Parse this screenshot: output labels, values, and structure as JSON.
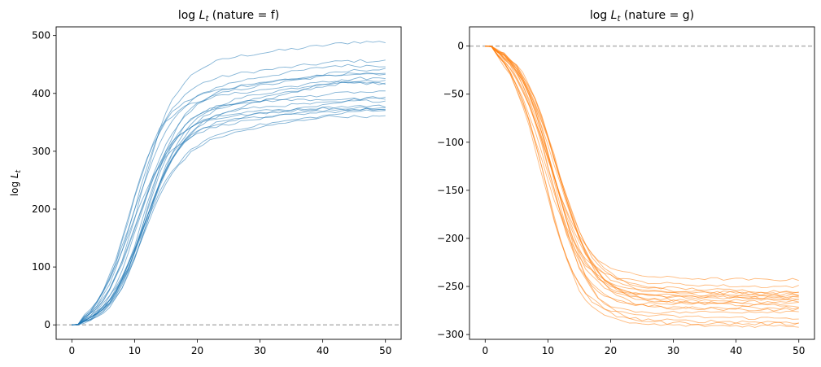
{
  "chart_data": [
    {
      "type": "line",
      "title": "log L_t (nature = f)",
      "title_parts": {
        "prefix": "log ",
        "var": "L",
        "sub": "t",
        "suffix": " (nature = f)"
      },
      "xlabel": "",
      "ylabel": "log L_t",
      "ylabel_parts": {
        "prefix": "log ",
        "var": "L",
        "sub": "t"
      },
      "xlim": [
        -2.5,
        52.5
      ],
      "ylim": [
        -25,
        515
      ],
      "xticks": [
        0,
        10,
        20,
        30,
        40,
        50
      ],
      "yticks": [
        0,
        100,
        200,
        300,
        400,
        500
      ],
      "reference_line": {
        "y": 0,
        "style": "dashed",
        "color": "#b3b3b3"
      },
      "line_color": "#1f77b4",
      "n_steps": 50,
      "n_series": 20,
      "final_values": [
        489,
        456,
        448,
        441,
        434,
        433,
        426,
        421,
        418,
        417,
        402,
        393,
        387,
        378,
        375,
        373,
        372,
        371,
        360,
        390
      ],
      "plateau_values": [
        455,
        425,
        410,
        400,
        395,
        405,
        380,
        390,
        370,
        350,
        375,
        345,
        370,
        355,
        365,
        350,
        340,
        330,
        320,
        385
      ]
    },
    {
      "type": "line",
      "title": "log L_t (nature = g)",
      "title_parts": {
        "prefix": "log ",
        "var": "L",
        "sub": "t",
        "suffix": " (nature = g)"
      },
      "xlabel": "",
      "ylabel": "",
      "xlim": [
        -2.5,
        52.5
      ],
      "ylim": [
        -305,
        20
      ],
      "xticks": [
        0,
        10,
        20,
        30,
        40,
        50
      ],
      "yticks": [
        0,
        -50,
        -100,
        -150,
        -200,
        -250,
        -300
      ],
      "reference_line": {
        "y": 0,
        "style": "dashed",
        "color": "#b3b3b3"
      },
      "line_color": "#ff7f0e",
      "n_steps": 50,
      "n_series": 20,
      "final_values": [
        -243,
        -250,
        -255,
        -257,
        -259,
        -261,
        -263,
        -264,
        -266,
        -270,
        -272,
        -274,
        -276,
        -283,
        -287,
        -289,
        -291,
        -262,
        -268,
        -258
      ],
      "plateau_values": [
        -240,
        -245,
        -250,
        -255,
        -262,
        -255,
        -260,
        -265,
        -270,
        -262,
        -275,
        -270,
        -278,
        -280,
        -285,
        -288,
        -290,
        -258,
        -266,
        -252
      ]
    }
  ]
}
